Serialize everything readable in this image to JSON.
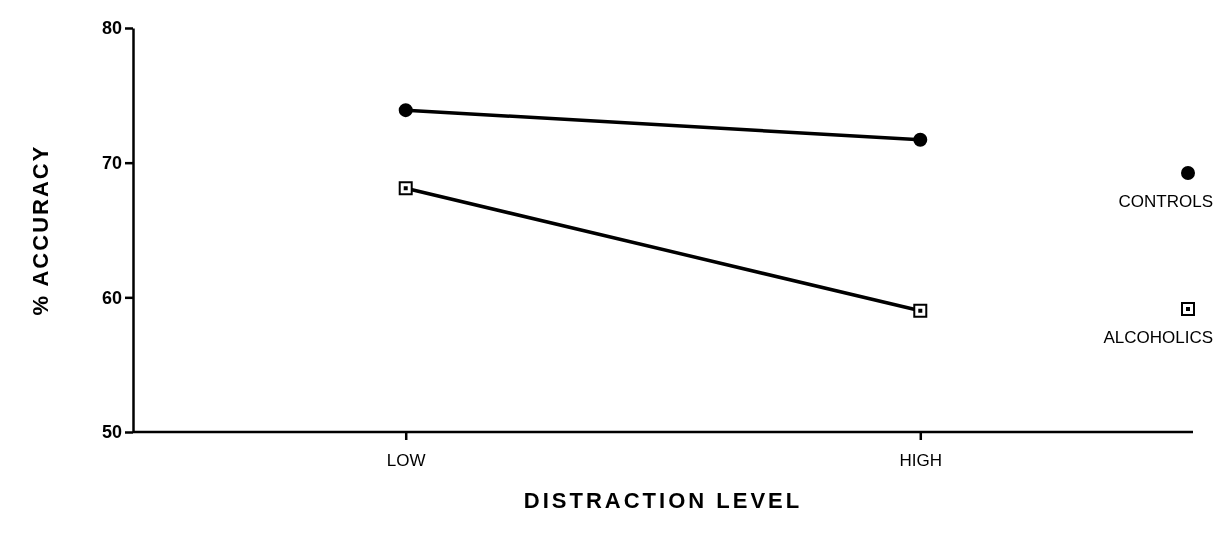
{
  "chart_data": {
    "type": "line",
    "xlabel": "DISTRACTION LEVEL",
    "ylabel": "% ACCURACY",
    "categories": [
      "LOW",
      "HIGH"
    ],
    "series": [
      {
        "name": "CONTROLS",
        "color": "#000000",
        "values": [
          73.9,
          71.7
        ],
        "marker": "circle"
      },
      {
        "name": "ALCOHOLICS",
        "color": "#000000",
        "values": [
          68.1,
          59.0
        ],
        "marker": "square"
      }
    ],
    "ylim": [
      50,
      80
    ],
    "yticks": [
      50,
      60,
      70,
      80
    ],
    "grid": false,
    "legend": "right",
    "line_style": "solid"
  }
}
